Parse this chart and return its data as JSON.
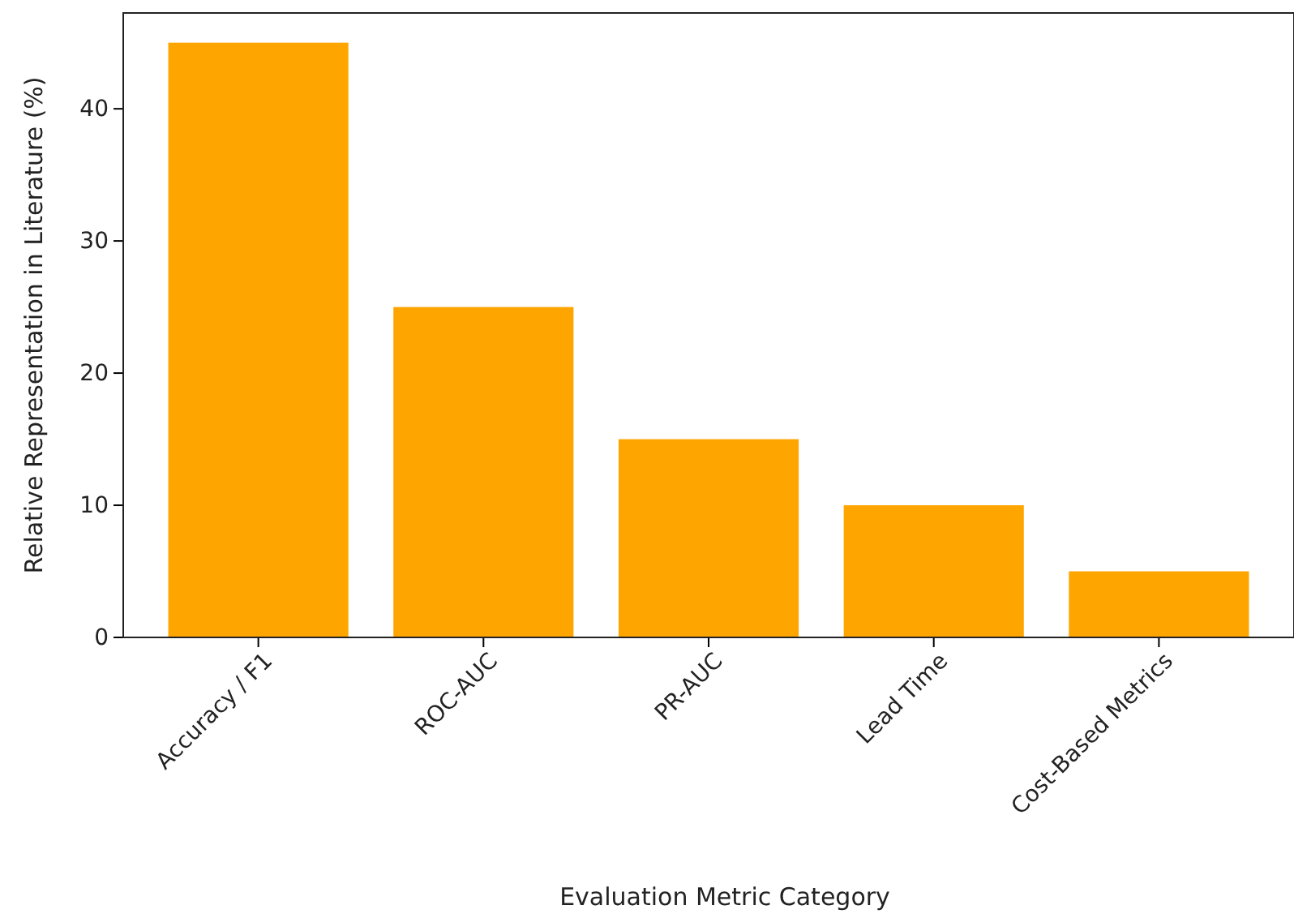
{
  "chart_data": {
    "type": "bar",
    "categories": [
      "Accuracy / F1",
      "ROC-AUC",
      "PR-AUC",
      "Lead Time",
      "Cost-Based Metrics"
    ],
    "values": [
      45,
      25,
      15,
      10,
      5
    ],
    "color": "#ffa500",
    "xlabel": "Evaluation Metric Category",
    "ylabel": "Relative Representation in Literature (%)",
    "ylim": [
      0,
      47.25
    ],
    "yticks": [
      0,
      10,
      20,
      30,
      40
    ],
    "grid": false
  }
}
